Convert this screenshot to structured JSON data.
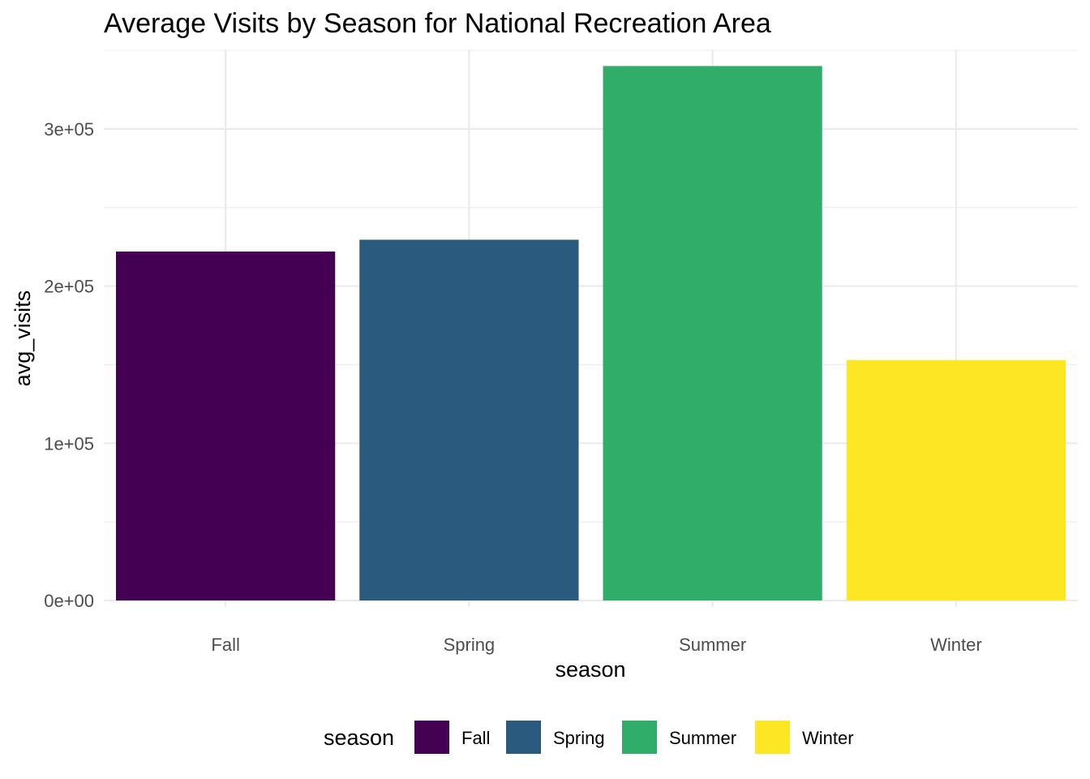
{
  "chart_data": {
    "type": "bar",
    "title": "Average Visits by Season for National Recreation Area",
    "xlabel": "season",
    "ylabel": "avg_visits",
    "categories": [
      "Fall",
      "Spring",
      "Summer",
      "Winter"
    ],
    "values": [
      222000,
      229500,
      340000,
      153000
    ],
    "colors": [
      "#440154",
      "#2A5A7E",
      "#31AD6A",
      "#FDE725"
    ],
    "ylim": [
      0,
      350000
    ],
    "yticks": [
      0,
      100000,
      200000,
      300000
    ],
    "ytick_labels": [
      "0e+00",
      "1e+05",
      "2e+05",
      "3e+05"
    ],
    "grid": true,
    "legend": {
      "title": "season",
      "position": "bottom",
      "entries": [
        "Fall",
        "Spring",
        "Summer",
        "Winter"
      ]
    }
  }
}
